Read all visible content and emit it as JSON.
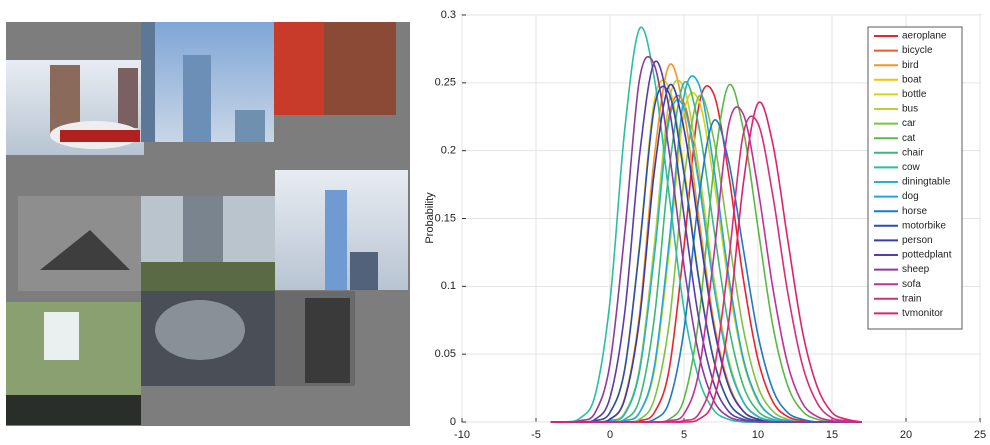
{
  "chart_data": {
    "type": "line",
    "y_label": "Probability",
    "xlim": [
      -10,
      25
    ],
    "xticks": [
      -10,
      -5,
      0,
      5,
      10,
      15,
      20,
      25
    ],
    "ylim": [
      0,
      0.3
    ],
    "yticks": [
      0,
      0.05,
      0.1,
      0.15,
      0.2,
      0.25,
      0.3
    ],
    "grid": true,
    "legend": "upper right",
    "x": [
      -4,
      -3,
      -2,
      -1,
      0,
      1,
      2,
      3,
      4,
      5,
      6,
      7,
      8,
      9,
      10,
      11,
      12,
      13,
      14,
      15,
      16,
      17
    ],
    "series": [
      {
        "name": "aeroplane",
        "color": "#e8242c",
        "values": [
          0,
          0,
          0,
          0,
          0,
          0,
          0.001,
          0.007,
          0.039,
          0.129,
          0.233,
          0.242,
          0.184,
          0.106,
          0.046,
          0.015,
          0.004,
          0.001,
          0,
          0,
          0,
          0
        ]
      },
      {
        "name": "bicycle",
        "color": "#f05a28",
        "values": [
          0,
          0,
          0,
          0,
          0.001,
          0.006,
          0.038,
          0.125,
          0.226,
          0.235,
          0.178,
          0.102,
          0.044,
          0.015,
          0.004,
          0.001,
          0,
          0,
          0,
          0,
          0,
          0
        ]
      },
      {
        "name": "bird",
        "color": "#f7941d",
        "values": [
          0,
          0,
          0,
          0,
          0.002,
          0.018,
          0.08,
          0.196,
          0.263,
          0.229,
          0.151,
          0.075,
          0.029,
          0.008,
          0.002,
          0,
          0,
          0,
          0,
          0,
          0,
          0
        ]
      },
      {
        "name": "boat",
        "color": "#f2c500",
        "values": [
          0,
          0,
          0,
          0.001,
          0.007,
          0.04,
          0.131,
          0.237,
          0.246,
          0.187,
          0.107,
          0.047,
          0.015,
          0.004,
          0.001,
          0,
          0,
          0,
          0,
          0,
          0,
          0
        ]
      },
      {
        "name": "bottle",
        "color": "#d2d60a",
        "values": [
          0,
          0,
          0,
          0,
          0,
          0.001,
          0.007,
          0.038,
          0.126,
          0.228,
          0.237,
          0.179,
          0.103,
          0.045,
          0.015,
          0.004,
          0.001,
          0,
          0,
          0,
          0,
          0
        ]
      },
      {
        "name": "bus",
        "color": "#b5d335",
        "values": [
          0,
          0,
          0,
          0,
          0.001,
          0.007,
          0.04,
          0.131,
          0.237,
          0.246,
          0.187,
          0.107,
          0.047,
          0.015,
          0.004,
          0.001,
          0,
          0,
          0,
          0,
          0,
          0
        ]
      },
      {
        "name": "car",
        "color": "#7dc242",
        "values": [
          0,
          0,
          0,
          0,
          0,
          0,
          0.002,
          0.017,
          0.073,
          0.179,
          0.24,
          0.209,
          0.138,
          0.069,
          0.026,
          0.008,
          0.002,
          0,
          0,
          0,
          0,
          0
        ]
      },
      {
        "name": "cat",
        "color": "#5ab846",
        "values": [
          0,
          0,
          0,
          0,
          0,
          0,
          0,
          0,
          0.002,
          0.017,
          0.076,
          0.185,
          0.248,
          0.216,
          0.143,
          0.071,
          0.027,
          0.008,
          0.002,
          0,
          0,
          0
        ]
      },
      {
        "name": "chair",
        "color": "#3cb878",
        "values": [
          0,
          0,
          0,
          0,
          0,
          0.002,
          0.017,
          0.077,
          0.186,
          0.25,
          0.218,
          0.144,
          0.072,
          0.027,
          0.008,
          0.002,
          0,
          0,
          0,
          0,
          0,
          0
        ]
      },
      {
        "name": "cow",
        "color": "#2bbfa0",
        "values": [
          0,
          0,
          0.003,
          0.02,
          0.089,
          0.216,
          0.29,
          0.253,
          0.167,
          0.083,
          0.032,
          0.009,
          0.002,
          0,
          0,
          0,
          0,
          0,
          0,
          0,
          0,
          0
        ]
      },
      {
        "name": "diningtable",
        "color": "#22b5c8",
        "values": [
          0,
          0,
          0,
          0,
          0.001,
          0.006,
          0.038,
          0.123,
          0.223,
          0.232,
          0.176,
          0.101,
          0.044,
          0.015,
          0.004,
          0.001,
          0,
          0,
          0,
          0,
          0,
          0
        ]
      },
      {
        "name": "dog",
        "color": "#1fa8e0",
        "values": [
          0,
          0,
          0,
          0,
          0,
          0.001,
          0.007,
          0.041,
          0.133,
          0.24,
          0.249,
          0.189,
          0.109,
          0.047,
          0.016,
          0.004,
          0.001,
          0,
          0,
          0,
          0,
          0
        ]
      },
      {
        "name": "horse",
        "color": "#1f78c8",
        "values": [
          0,
          0,
          0,
          0,
          0,
          0,
          0,
          0.002,
          0.015,
          0.068,
          0.165,
          0.222,
          0.193,
          0.128,
          0.064,
          0.024,
          0.007,
          0.002,
          0,
          0,
          0,
          0
        ]
      },
      {
        "name": "motorbike",
        "color": "#2a4fb0",
        "values": [
          0,
          0,
          0,
          0.001,
          0.007,
          0.039,
          0.129,
          0.232,
          0.242,
          0.183,
          0.105,
          0.046,
          0.015,
          0.004,
          0.001,
          0,
          0,
          0,
          0,
          0,
          0,
          0
        ]
      },
      {
        "name": "person",
        "color": "#3a3aa8",
        "values": [
          0,
          0,
          0,
          0,
          0.002,
          0.017,
          0.076,
          0.185,
          0.248,
          0.216,
          0.143,
          0.071,
          0.027,
          0.008,
          0.002,
          0,
          0,
          0,
          0,
          0,
          0,
          0
        ]
      },
      {
        "name": "pottedplant",
        "color": "#5a3ca8",
        "values": [
          0,
          0,
          0,
          0.002,
          0.018,
          0.081,
          0.197,
          0.265,
          0.231,
          0.152,
          0.076,
          0.029,
          0.008,
          0.002,
          0,
          0,
          0,
          0,
          0,
          0,
          0,
          0
        ]
      },
      {
        "name": "sheep",
        "color": "#8a3c9c",
        "values": [
          0,
          0,
          0.001,
          0.007,
          0.043,
          0.14,
          0.253,
          0.263,
          0.199,
          0.115,
          0.05,
          0.016,
          0.004,
          0.001,
          0,
          0,
          0,
          0,
          0,
          0,
          0,
          0
        ]
      },
      {
        "name": "sofa",
        "color": "#c0309a",
        "values": [
          0,
          0,
          0,
          0,
          0,
          0,
          0,
          0,
          0.001,
          0.006,
          0.037,
          0.121,
          0.218,
          0.227,
          0.172,
          0.099,
          0.043,
          0.014,
          0.004,
          0.001,
          0,
          0
        ]
      },
      {
        "name": "train",
        "color": "#d62c7c",
        "values": [
          0,
          0,
          0,
          0,
          0,
          0,
          0,
          0,
          0,
          0.001,
          0.006,
          0.036,
          0.117,
          0.212,
          0.22,
          0.167,
          0.096,
          0.042,
          0.014,
          0.003,
          0.001,
          0
        ]
      },
      {
        "name": "tvmonitor",
        "color": "#e0206e",
        "values": [
          0,
          0,
          0,
          0,
          0,
          0,
          0,
          0,
          0,
          0,
          0.002,
          0.016,
          0.072,
          0.175,
          0.235,
          0.205,
          0.135,
          0.067,
          0.026,
          0.007,
          0.002,
          0
        ]
      }
    ]
  }
}
